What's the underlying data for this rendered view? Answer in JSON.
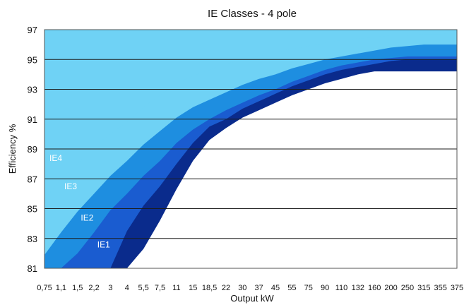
{
  "chart_data": {
    "type": "area",
    "title": "IE Classes - 4 pole",
    "xlabel": "Output kW",
    "ylabel": "Efficiency %",
    "categories": [
      "0,75",
      "1,1",
      "1,5",
      "2,2",
      "3",
      "4",
      "5,5",
      "7,5",
      "11",
      "15",
      "18,5",
      "22",
      "30",
      "37",
      "45",
      "55",
      "75",
      "90",
      "110",
      "132",
      "160",
      "200",
      "250",
      "315",
      "355",
      "375"
    ],
    "ylim": [
      81,
      97
    ],
    "yticks": [
      "81",
      "83",
      "85",
      "87",
      "89",
      "91",
      "93",
      "95",
      "97"
    ],
    "grid": true,
    "series": [
      {
        "name": "IE4",
        "color": "#6fd2f5",
        "values": [
          85.6,
          87.0,
          88.0,
          89.2,
          90.0,
          90.8,
          91.8,
          92.6,
          93.4,
          93.9,
          94.3,
          94.7,
          95.0,
          95.2,
          95.5,
          95.7,
          95.9,
          96.1,
          96.3,
          96.4,
          96.5,
          96.6,
          96.6,
          96.7,
          96.7,
          96.8
        ]
      },
      {
        "name": "IE3",
        "color": "#1e8ee0",
        "values": [
          81.9,
          83.4,
          84.8,
          86.0,
          87.2,
          88.2,
          89.3,
          90.2,
          91.1,
          91.8,
          92.3,
          92.8,
          93.3,
          93.7,
          94.0,
          94.4,
          94.7,
          95.0,
          95.2,
          95.4,
          95.6,
          95.8,
          95.9,
          96.0,
          96.0,
          96.0
        ]
      },
      {
        "name": "IE2",
        "color": "#1a5cd0",
        "values": [
          81.0,
          81.0,
          82.0,
          83.4,
          84.9,
          86.0,
          87.2,
          88.2,
          89.4,
          90.3,
          91.0,
          91.6,
          92.1,
          92.6,
          93.0,
          93.5,
          93.9,
          94.3,
          94.6,
          94.8,
          95.0,
          95.1,
          95.2,
          95.2,
          95.2,
          95.2
        ]
      },
      {
        "name": "IE1",
        "color": "#0a2b8c",
        "values": [
          81.0,
          81.0,
          81.0,
          81.0,
          81.0,
          83.5,
          85.2,
          86.5,
          88.0,
          89.4,
          90.5,
          91.0,
          91.7,
          92.2,
          92.7,
          93.2,
          93.6,
          94.0,
          94.3,
          94.5,
          94.7,
          94.9,
          95.0,
          95.0,
          95.0,
          95.0
        ]
      }
    ],
    "floor_series": {
      "name": "",
      "color": "#ffffff",
      "values": [
        81.0,
        81.0,
        81.0,
        81.0,
        81.0,
        81.0,
        82.3,
        84.2,
        86.3,
        88.2,
        89.6,
        90.4,
        91.1,
        91.6,
        92.1,
        92.6,
        93.0,
        93.4,
        93.7,
        94.0,
        94.2,
        94.2,
        94.2,
        94.2,
        94.2,
        94.2
      ]
    },
    "band_labels": [
      {
        "text": "IE4",
        "category_index": 0.3,
        "y": 88.2
      },
      {
        "text": "IE3",
        "category_index": 1.2,
        "y": 86.3
      },
      {
        "text": "IE2",
        "category_index": 2.2,
        "y": 84.2
      },
      {
        "text": "IE1",
        "category_index": 3.2,
        "y": 82.4
      }
    ],
    "top_band_color": "#6fd2f5"
  }
}
